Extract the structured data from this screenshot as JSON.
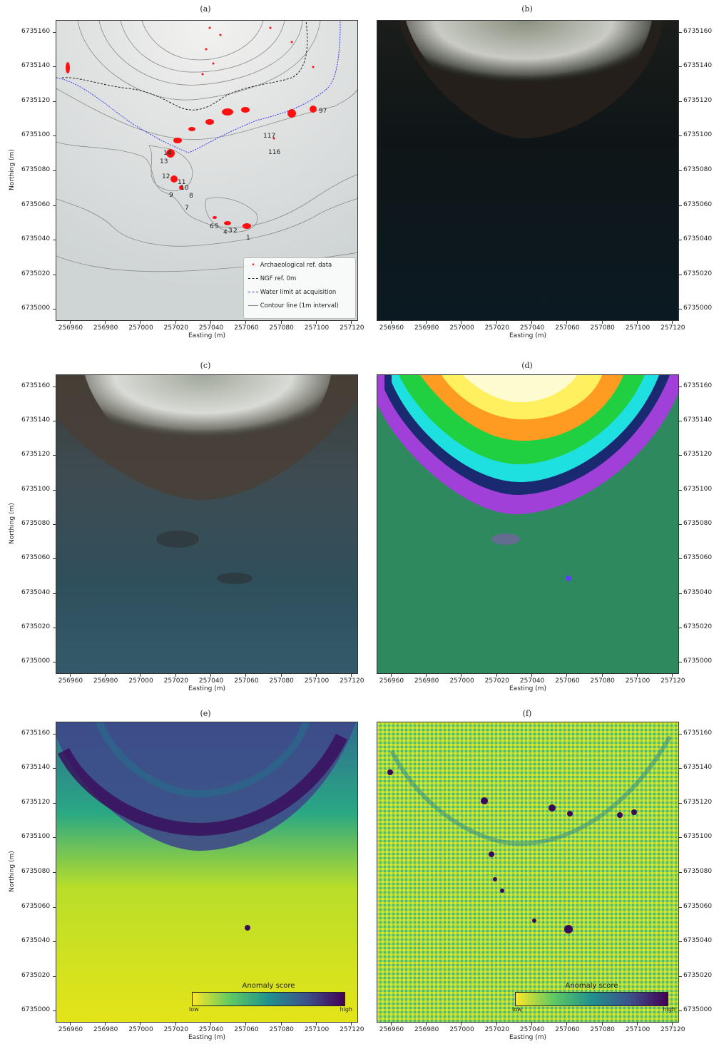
{
  "panels": [
    {
      "label": "(a)"
    },
    {
      "label": "(b)"
    },
    {
      "label": "(c)"
    },
    {
      "label": "(d)"
    },
    {
      "label": "(e)"
    },
    {
      "label": "(f)"
    }
  ],
  "axes": {
    "xlabel": "Easting (m)",
    "ylabel": "Northing (m)",
    "xticks": [
      "256960",
      "256980",
      "257000",
      "257020",
      "257040",
      "257060",
      "257080",
      "257100",
      "257120"
    ],
    "yticks": [
      "6735160",
      "6735140",
      "6735120",
      "6735100",
      "6735080",
      "6735060",
      "6735040",
      "6735020",
      "6735000"
    ]
  },
  "legend_a": {
    "items": [
      {
        "label": "Archaeological ref. data",
        "color": "#ff0000"
      },
      {
        "label": "NGF ref. 0m",
        "color": "#222222"
      },
      {
        "label": "Water limit at acquisition",
        "color": "#3a3aff"
      },
      {
        "label": "Contour line (1m interval)",
        "color": "#888888"
      }
    ]
  },
  "site_labels": [
    "97",
    "117",
    "116",
    "14",
    "13",
    "12",
    "11",
    "10",
    "9",
    "8",
    "7",
    "6",
    "5",
    "4",
    "3",
    "2",
    "1"
  ],
  "colorbar": {
    "title": "Anomaly score",
    "low": "low",
    "high": "high"
  }
}
